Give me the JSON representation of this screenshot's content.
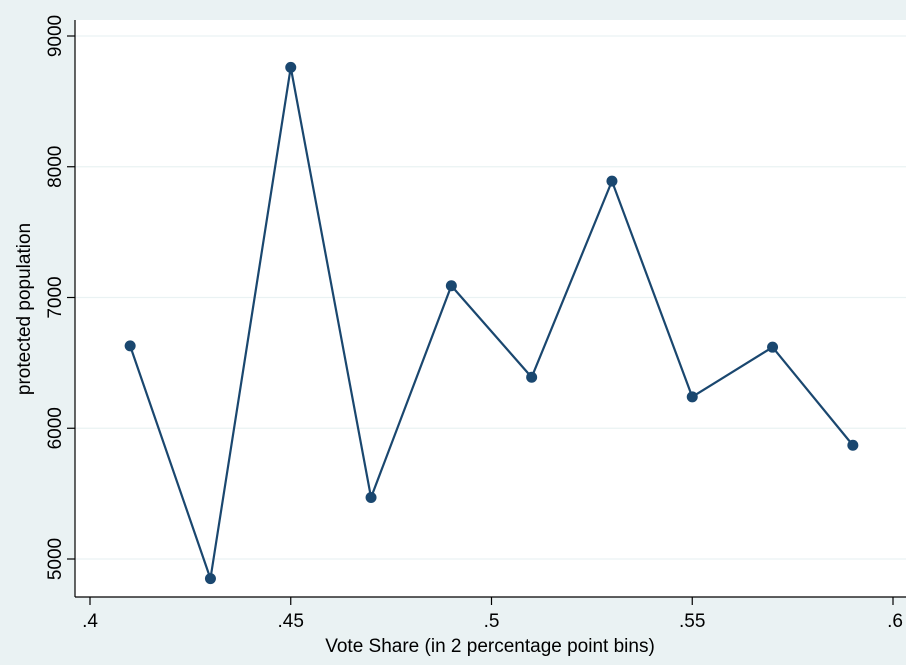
{
  "chart_data": {
    "type": "line",
    "title": "",
    "xlabel": "Vote Share (in 2 percentage point bins)",
    "ylabel": "protected population",
    "xlim": [
      0.4,
      0.6
    ],
    "ylim": [
      4850,
      9000
    ],
    "x_ticks": [
      0.4,
      0.45,
      0.5,
      0.55,
      0.6
    ],
    "x_tick_labels": [
      ".4",
      ".45",
      ".5",
      ".55",
      ".6"
    ],
    "y_ticks": [
      5000,
      6000,
      7000,
      8000,
      9000
    ],
    "y_tick_labels": [
      "5000",
      "6000",
      "7000",
      "8000",
      "9000"
    ],
    "grid": true,
    "series": [
      {
        "x": [
          0.41,
          0.43,
          0.45,
          0.47,
          0.49,
          0.51,
          0.53,
          0.55,
          0.57,
          0.59
        ],
        "y": [
          6630,
          4850,
          8760,
          5470,
          7090,
          6390,
          7890,
          6240,
          6620,
          5870
        ]
      }
    ],
    "colors": {
      "page_background": "#eaf2f3",
      "plot_background": "#ffffff",
      "series": "#1a476f"
    }
  }
}
